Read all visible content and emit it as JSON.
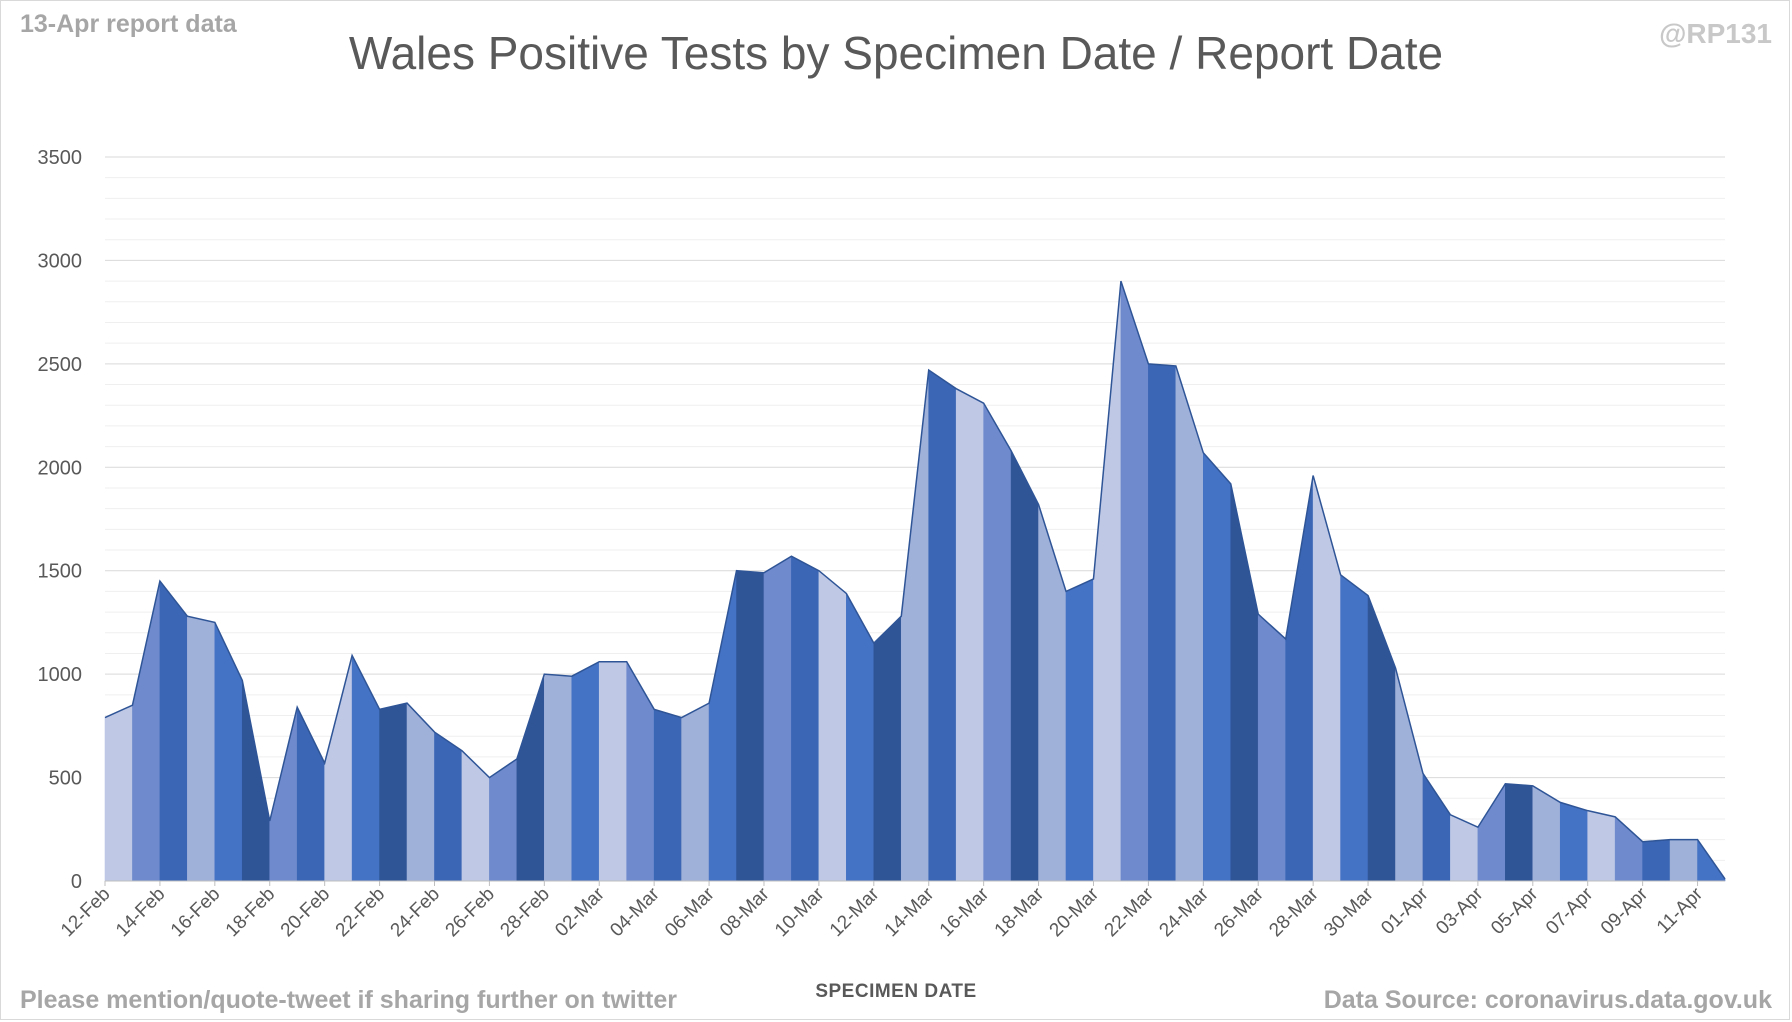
{
  "header": {
    "report_label": "13-Apr report data",
    "handle": "@RP131",
    "title": "Wales Positive Tests by Specimen Date / Report Date"
  },
  "footer": {
    "left": "Please mention/quote-tweet if sharing further on twitter",
    "right": "Data Source: coronavirus.data.gov.uk"
  },
  "chart_data": {
    "type": "area",
    "title": "Wales Positive Tests by Specimen Date / Report Date",
    "xlabel": "SPECIMEN DATE",
    "ylabel": "",
    "ylim": [
      0,
      3500
    ],
    "y_ticks": [
      0,
      500,
      1000,
      1500,
      2000,
      2500,
      3000,
      3500
    ],
    "minor_gridline_step": 100,
    "grid": true,
    "legend": "none",
    "x": [
      "12-Feb",
      "13-Feb",
      "14-Feb",
      "15-Feb",
      "16-Feb",
      "17-Feb",
      "18-Feb",
      "19-Feb",
      "20-Feb",
      "21-Feb",
      "22-Feb",
      "23-Feb",
      "24-Feb",
      "25-Feb",
      "26-Feb",
      "27-Feb",
      "28-Feb",
      "01-Mar",
      "02-Mar",
      "03-Mar",
      "04-Mar",
      "05-Mar",
      "06-Mar",
      "07-Mar",
      "08-Mar",
      "09-Mar",
      "10-Mar",
      "11-Mar",
      "12-Mar",
      "13-Mar",
      "14-Mar",
      "15-Mar",
      "16-Mar",
      "17-Mar",
      "18-Mar",
      "19-Mar",
      "20-Mar",
      "21-Mar",
      "22-Mar",
      "23-Mar",
      "24-Mar",
      "25-Mar",
      "26-Mar",
      "27-Mar",
      "28-Mar",
      "29-Mar",
      "30-Mar",
      "31-Mar",
      "01-Apr",
      "02-Apr",
      "03-Apr",
      "04-Apr",
      "05-Apr",
      "06-Apr",
      "07-Apr",
      "08-Apr",
      "09-Apr",
      "10-Apr",
      "11-Apr",
      "12-Apr"
    ],
    "x_tick_labels": [
      "12-Feb",
      "14-Feb",
      "16-Feb",
      "18-Feb",
      "20-Feb",
      "22-Feb",
      "24-Feb",
      "26-Feb",
      "28-Feb",
      "02-Mar",
      "04-Mar",
      "06-Mar",
      "08-Mar",
      "10-Mar",
      "12-Mar",
      "14-Mar",
      "16-Mar",
      "18-Mar",
      "20-Mar",
      "22-Mar",
      "24-Mar",
      "26-Mar",
      "28-Mar",
      "30-Mar",
      "01-Apr",
      "03-Apr",
      "05-Apr",
      "07-Apr",
      "09-Apr",
      "11-Apr"
    ],
    "series": [
      {
        "values": [
          790,
          850,
          1450,
          1280,
          1250,
          970,
          290,
          840,
          570,
          1090,
          830,
          860,
          720,
          630,
          500,
          590,
          1000,
          990,
          1060,
          1060,
          830,
          790,
          860,
          1500,
          1490,
          1570,
          1500,
          1390,
          1150,
          1280,
          2470,
          2380,
          2310,
          2080,
          1820,
          1400,
          1460,
          2900,
          2500,
          2490,
          2070,
          1920,
          1290,
          1170,
          1960,
          1480,
          1380,
          1030,
          520,
          320,
          260,
          470,
          460,
          380,
          340,
          310,
          190,
          200,
          200,
          10
        ],
        "color": "#8faadc"
      }
    ],
    "colors": [
      "#bfc9e6",
      "#9fb0d9",
      "#6f8bcd",
      "#4472c4",
      "#3a66b5",
      "#2f5597"
    ]
  }
}
